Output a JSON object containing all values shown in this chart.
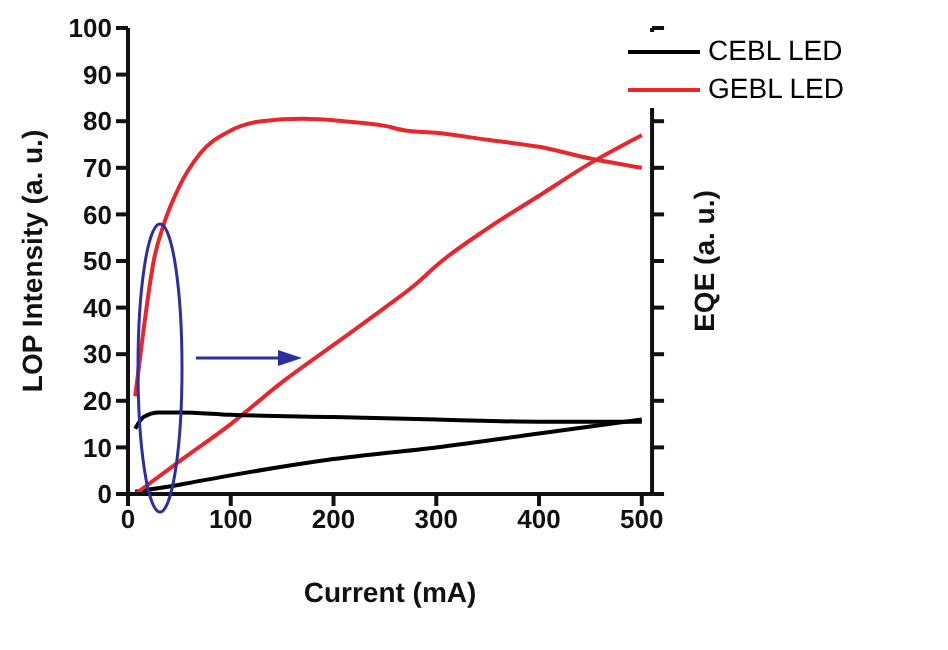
{
  "chart_data": {
    "type": "line",
    "xlabel": "Current (mA)",
    "ylabel": "LOP Intensity (a. u.)",
    "y2label": "EQE (a. u.)",
    "xlim": [
      0,
      510
    ],
    "xticks": [
      0,
      100,
      200,
      300,
      400,
      500
    ],
    "ylim": [
      0,
      100
    ],
    "yticks": [
      0,
      10,
      20,
      30,
      40,
      50,
      60,
      70,
      80,
      90,
      100
    ],
    "legend": "top right",
    "grid": false,
    "marker": "none",
    "line_style": "solid",
    "series": [
      {
        "name": "CEBL LED",
        "color": "#000000",
        "x": [
          7,
          50,
          100,
          200,
          300,
          400,
          500
        ],
        "values": [
          0.5,
          2,
          4,
          7.5,
          10,
          13,
          16
        ]
      },
      {
        "name": "GEBL LED",
        "color": "#e8262c",
        "x": [
          7,
          50,
          100,
          150,
          200,
          250,
          280,
          300,
          350,
          400,
          450,
          500
        ],
        "values": [
          0,
          7,
          15,
          24,
          32,
          40,
          45,
          49,
          57,
          64,
          71,
          77
        ]
      },
      {
        "color": "#000000",
        "x": [
          7,
          15,
          30,
          50,
          100,
          200,
          300,
          400,
          500
        ],
        "values": [
          14,
          16.5,
          17.5,
          17.5,
          17,
          16.5,
          16,
          15.5,
          15.5
        ]
      },
      {
        "color": "#e8262c",
        "x": [
          7,
          15,
          25,
          35,
          50,
          70,
          100,
          130,
          170,
          210,
          250,
          270,
          300,
          350,
          400,
          450,
          500
        ],
        "values": [
          21,
          35,
          50,
          58,
          66,
          73,
          78,
          80,
          80.5,
          80,
          79,
          78,
          77.5,
          76,
          74.5,
          72,
          70
        ]
      }
    ]
  }
}
